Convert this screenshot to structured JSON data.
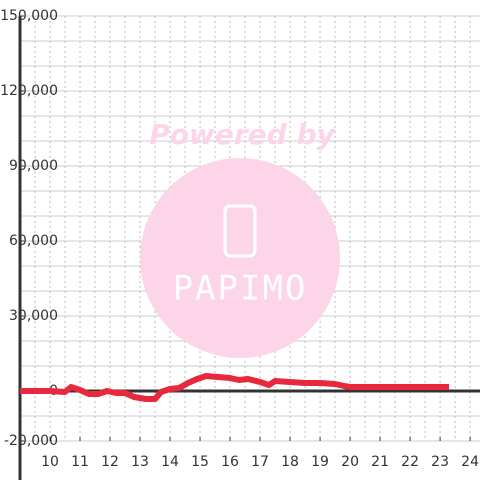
{
  "chart_data": {
    "type": "line",
    "x": [
      9,
      9.5,
      10,
      10.5,
      10.7,
      11,
      11.3,
      11.6,
      11.9,
      12.2,
      12.5,
      12.8,
      13.2,
      13.5,
      13.7,
      14,
      14.3,
      14.6,
      14.9,
      15.2,
      15.6,
      16,
      16.3,
      16.6,
      17,
      17.3,
      17.5,
      18,
      18.5,
      19,
      19.5,
      19.8,
      20,
      21,
      22,
      23.3
    ],
    "series": [
      {
        "color": "#e8283c",
        "values": [
          0,
          0,
          0,
          -400,
          1600,
          400,
          -1200,
          -1200,
          0,
          -800,
          -800,
          -2400,
          -3200,
          -3200,
          -400,
          800,
          1200,
          3200,
          4800,
          6000,
          5600,
          5200,
          4400,
          4800,
          3600,
          2400,
          4000,
          3600,
          3200,
          3200,
          2800,
          2000,
          1600,
          1600,
          1600,
          1600
        ]
      }
    ],
    "xlim": [
      9,
      24.33
    ],
    "xticks": [
      10,
      11,
      12,
      13,
      14,
      15,
      16,
      17,
      18,
      19,
      20,
      21,
      22,
      23,
      24
    ],
    "xgrid": [
      9.5,
      10,
      10.5,
      11,
      11.5,
      12,
      12.5,
      13,
      13.5,
      14,
      14.5,
      15,
      15.5,
      16,
      16.5,
      17,
      17.5,
      18,
      18.5,
      19,
      19.5,
      20,
      20.5,
      21,
      21.5,
      22,
      22.5,
      23,
      23.5,
      24
    ],
    "ylim": [
      -20000,
      150000
    ],
    "yticks": [
      {
        "value": 150000,
        "label": "150,000"
      },
      {
        "value": 120000,
        "label": "120,000"
      },
      {
        "value": 90000,
        "label": "90,000"
      },
      {
        "value": 60000,
        "label": "60,000"
      },
      {
        "value": 30000,
        "label": "30,000"
      },
      0,
      {
        "value": -20000,
        "label": "-20,000"
      }
    ],
    "ygrid": [
      -20000,
      -10000,
      10000,
      20000,
      30000,
      40000,
      50000,
      60000,
      70000,
      80000,
      90000,
      100000,
      110000,
      120000,
      130000,
      140000,
      150000
    ],
    "grid": true
  },
  "watermark": {
    "line1": "Powered by",
    "line2": "PAPIMO"
  }
}
